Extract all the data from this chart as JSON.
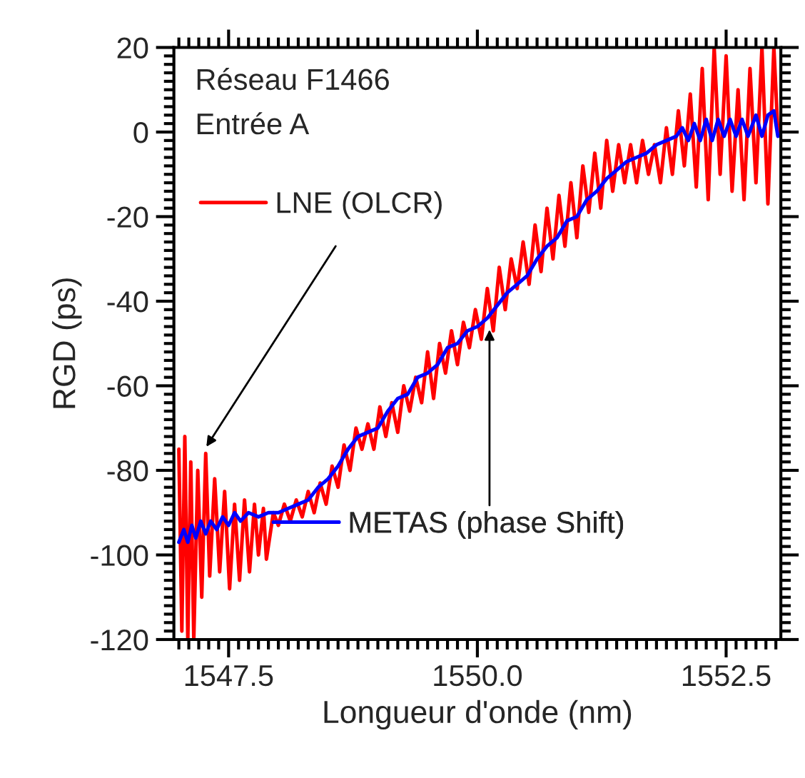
{
  "chart_data": {
    "type": "line",
    "xlabel": "Longueur d'onde (nm)",
    "ylabel": "RGD (ps)",
    "annotations": [
      "Réseau F1466",
      "Entrée A"
    ],
    "xlim": [
      1546.95,
      1553.05
    ],
    "ylim": [
      -120,
      20
    ],
    "xticks": [
      {
        "value": 1547.5,
        "label": "1547.5"
      },
      {
        "value": 1550.0,
        "label": "1550.0"
      },
      {
        "value": 1552.5,
        "label": "1552.5"
      }
    ],
    "yticks": [
      -120,
      -100,
      -80,
      -60,
      -40,
      -20,
      0,
      20
    ],
    "grid": false,
    "legend": "left",
    "line_style": "solid",
    "marker": "none",
    "series": [
      {
        "name": "LNE (OLCR)",
        "color": "#ff0000",
        "x": [
          1547.0,
          1547.03,
          1547.06,
          1547.09,
          1547.12,
          1547.15,
          1547.19,
          1547.23,
          1547.27,
          1547.31,
          1547.36,
          1547.41,
          1547.46,
          1547.51,
          1547.56,
          1547.61,
          1547.66,
          1547.71,
          1547.76,
          1547.8,
          1547.85,
          1547.88,
          1547.95,
          1548.0,
          1548.06,
          1548.12,
          1548.18,
          1548.24,
          1548.3,
          1548.36,
          1548.42,
          1548.48,
          1548.54,
          1548.6,
          1548.66,
          1548.72,
          1548.78,
          1548.84,
          1548.9,
          1548.96,
          1549.02,
          1549.08,
          1549.14,
          1549.2,
          1549.26,
          1549.32,
          1549.38,
          1549.44,
          1549.5,
          1549.56,
          1549.62,
          1549.68,
          1549.74,
          1549.8,
          1549.86,
          1549.92,
          1549.98,
          1550.04,
          1550.1,
          1550.16,
          1550.22,
          1550.28,
          1550.34,
          1550.4,
          1550.46,
          1550.52,
          1550.58,
          1550.64,
          1550.7,
          1550.76,
          1550.82,
          1550.88,
          1550.94,
          1551.0,
          1551.06,
          1551.12,
          1551.18,
          1551.24,
          1551.3,
          1551.36,
          1551.42,
          1551.48,
          1551.54,
          1551.6,
          1551.66,
          1551.72,
          1551.78,
          1551.84,
          1551.9,
          1551.96,
          1552.02,
          1552.08,
          1552.14,
          1552.2,
          1552.26,
          1552.32,
          1552.38,
          1552.44,
          1552.5,
          1552.56,
          1552.62,
          1552.68,
          1552.74,
          1552.8,
          1552.86,
          1552.92,
          1552.98,
          1553.02
        ],
        "values": [
          -75,
          -118,
          -72,
          -120,
          -78,
          -120,
          -80,
          -110,
          -76,
          -105,
          -82,
          -104,
          -85,
          -108,
          -88,
          -106,
          -87,
          -104,
          -88,
          -100,
          -89,
          -101,
          -90,
          -93,
          -88,
          -92,
          -87,
          -91,
          -85,
          -90,
          -83,
          -88,
          -79,
          -84,
          -74,
          -80,
          -70,
          -75,
          -69,
          -75,
          -65,
          -72,
          -64,
          -71,
          -60,
          -66,
          -58,
          -64,
          -52,
          -63,
          -50,
          -57,
          -47,
          -55,
          -45,
          -51,
          -42,
          -49,
          -37,
          -47,
          -32,
          -42,
          -30,
          -37,
          -26,
          -36,
          -22,
          -33,
          -18,
          -30,
          -15,
          -27,
          -12,
          -25,
          -8,
          -19,
          -5,
          -18,
          -2,
          -14,
          -3,
          -12,
          -3,
          -12,
          -2,
          -10,
          -3,
          -12,
          1,
          -10,
          5,
          -8,
          9,
          -13,
          15,
          -16,
          20,
          -10,
          18,
          -14,
          10,
          -16,
          15,
          -12,
          20,
          -17,
          20,
          0
        ]
      },
      {
        "name": "METAS (phase Shift)",
        "color": "#0000ff",
        "x": [
          1547.0,
          1547.05,
          1547.09,
          1547.13,
          1547.17,
          1547.22,
          1547.27,
          1547.32,
          1547.38,
          1547.44,
          1547.5,
          1547.56,
          1547.62,
          1547.7,
          1547.8,
          1547.9,
          1548.0,
          1548.1,
          1548.2,
          1548.3,
          1548.4,
          1548.5,
          1548.6,
          1548.7,
          1548.8,
          1548.9,
          1549.0,
          1549.1,
          1549.2,
          1549.3,
          1549.4,
          1549.5,
          1549.6,
          1549.7,
          1549.8,
          1549.9,
          1550.0,
          1550.1,
          1550.2,
          1550.3,
          1550.4,
          1550.5,
          1550.6,
          1550.7,
          1550.8,
          1550.9,
          1551.0,
          1551.1,
          1551.2,
          1551.3,
          1551.4,
          1551.5,
          1551.6,
          1551.7,
          1551.8,
          1551.9,
          1552.0,
          1552.06,
          1552.12,
          1552.18,
          1552.24,
          1552.3,
          1552.36,
          1552.42,
          1552.48,
          1552.54,
          1552.6,
          1552.66,
          1552.72,
          1552.8,
          1552.86,
          1552.92,
          1552.98,
          1553.02
        ],
        "values": [
          -97,
          -94,
          -97,
          -93,
          -96,
          -92,
          -95,
          -92,
          -94,
          -91,
          -93,
          -90,
          -92,
          -90,
          -91,
          -90,
          -90,
          -89,
          -88,
          -87,
          -84,
          -82,
          -79,
          -75,
          -72,
          -71,
          -70,
          -66,
          -63,
          -62,
          -58,
          -57,
          -55,
          -51,
          -50,
          -47,
          -46,
          -44,
          -41,
          -38,
          -36,
          -34,
          -30,
          -27,
          -25,
          -21,
          -20,
          -16,
          -14,
          -11,
          -9,
          -7,
          -6,
          -5,
          -3,
          -2,
          -1,
          1,
          -2,
          2,
          -2,
          3,
          -2,
          3,
          -1,
          3,
          -1,
          3,
          -1,
          4,
          -1,
          4,
          5,
          -1
        ]
      }
    ]
  }
}
